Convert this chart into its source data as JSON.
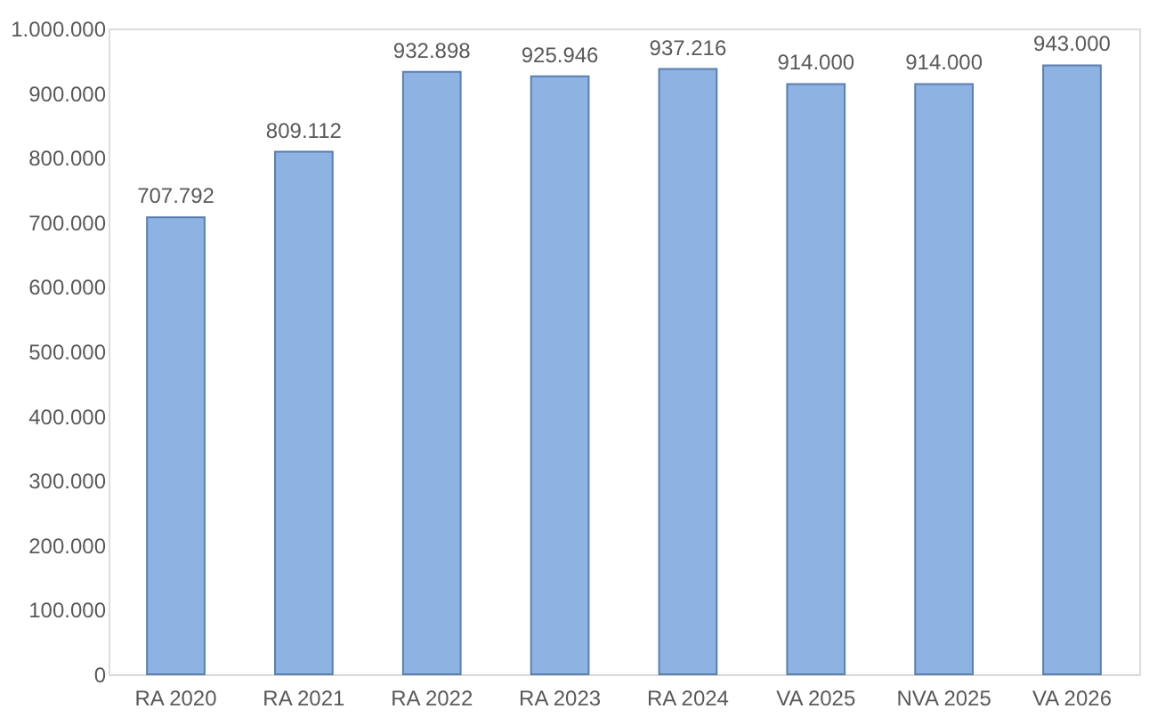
{
  "chart_data": {
    "type": "bar",
    "categories": [
      "RA 2020",
      "RA 2021",
      "RA 2022",
      "RA 2023",
      "RA 2024",
      "VA 2025",
      "NVA 2025",
      "VA 2026"
    ],
    "values": [
      707792,
      809112,
      932898,
      925946,
      937216,
      914000,
      914000,
      943000
    ],
    "value_labels": [
      "707.792",
      "809.112",
      "932.898",
      "925.946",
      "937.216",
      "914.000",
      "914.000",
      "943.000"
    ],
    "color": "#8db3e2",
    "ylim": [
      0,
      1000000
    ],
    "yticks": [
      {
        "value": 0,
        "label": "0"
      },
      {
        "value": 100000,
        "label": "100.000"
      },
      {
        "value": 200000,
        "label": "200.000"
      },
      {
        "value": 300000,
        "label": "300.000"
      },
      {
        "value": 400000,
        "label": "400.000"
      },
      {
        "value": 500000,
        "label": "500.000"
      },
      {
        "value": 600000,
        "label": "600.000"
      },
      {
        "value": 700000,
        "label": "700.000"
      },
      {
        "value": 800000,
        "label": "800.000"
      },
      {
        "value": 900000,
        "label": "900.000"
      },
      {
        "value": 1000000,
        "label": "1.000.000"
      }
    ],
    "grid": false
  }
}
